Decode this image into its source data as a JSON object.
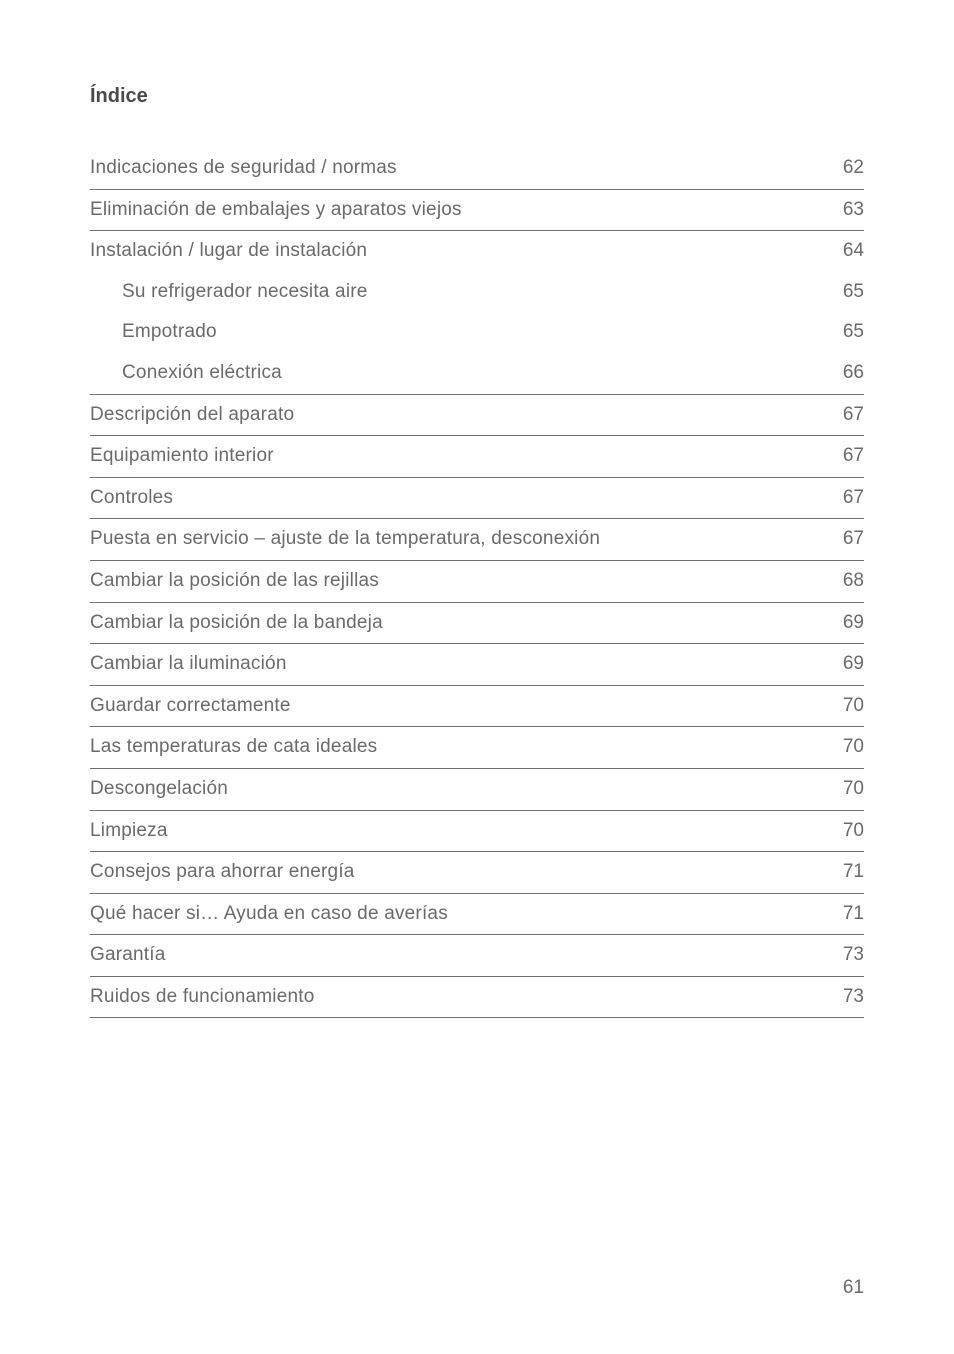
{
  "title": "Índice",
  "toc": [
    {
      "label": "Indicaciones de seguridad / normas",
      "page": "62",
      "bordered": true,
      "sub": false
    },
    {
      "label": "Eliminación de embalajes y aparatos viejos",
      "page": "63",
      "bordered": true,
      "sub": false
    },
    {
      "label": "Instalación / lugar de instalación",
      "page": "64",
      "bordered": false,
      "sub": false
    },
    {
      "label": "Su refrigerador necesita aire",
      "page": "65",
      "bordered": false,
      "sub": true
    },
    {
      "label": "Empotrado",
      "page": "65",
      "bordered": false,
      "sub": true
    },
    {
      "label": "Conexión eléctrica",
      "page": "66",
      "bordered": true,
      "sub": true
    },
    {
      "label": "Descripción del aparato",
      "page": "67",
      "bordered": true,
      "sub": false
    },
    {
      "label": "Equipamiento interior",
      "page": "67",
      "bordered": true,
      "sub": false
    },
    {
      "label": "Controles",
      "page": "67",
      "bordered": true,
      "sub": false
    },
    {
      "label": "Puesta en servicio – ajuste de la temperatura, desconexión",
      "page": "67",
      "bordered": true,
      "sub": false
    },
    {
      "label": "Cambiar la posición de las rejillas",
      "page": "68",
      "bordered": true,
      "sub": false
    },
    {
      "label": "Cambiar la posición de la bandeja",
      "page": "69",
      "bordered": true,
      "sub": false
    },
    {
      "label": "Cambiar la iluminación",
      "page": "69",
      "bordered": true,
      "sub": false
    },
    {
      "label": "Guardar correctamente",
      "page": "70",
      "bordered": true,
      "sub": false
    },
    {
      "label": "Las temperaturas de cata ideales",
      "page": "70",
      "bordered": true,
      "sub": false
    },
    {
      "label": "Descongelación",
      "page": "70",
      "bordered": true,
      "sub": false
    },
    {
      "label": "Limpieza",
      "page": "70",
      "bordered": true,
      "sub": false
    },
    {
      "label": "Consejos para ahorrar energía",
      "page": "71",
      "bordered": true,
      "sub": false
    },
    {
      "label": "Qué hacer si… Ayuda en caso de averías",
      "page": "71",
      "bordered": true,
      "sub": false
    },
    {
      "label": "Garantía",
      "page": "73",
      "bordered": true,
      "sub": false
    },
    {
      "label": "Ruidos de funcionamiento",
      "page": "73",
      "bordered": true,
      "sub": false
    }
  ],
  "page_number": "61"
}
